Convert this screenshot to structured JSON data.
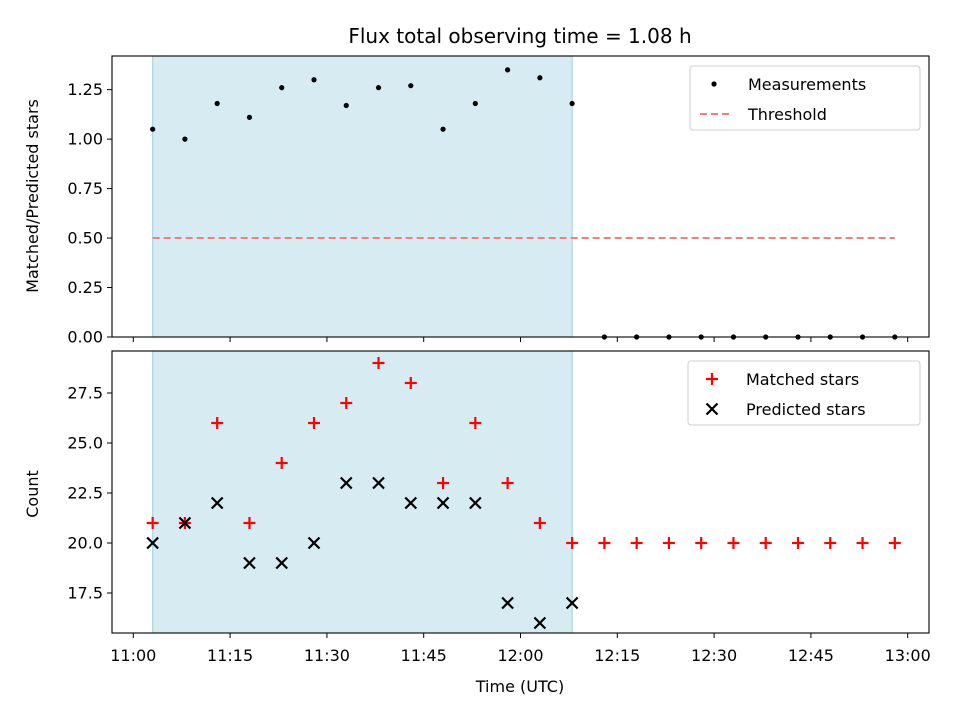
{
  "chart_data": [
    {
      "type": "scatter",
      "title": "Flux total observing time = 1.08 h",
      "xlabel": "",
      "ylabel": "Matched/Predicted stars",
      "ylim": [
        0,
        1.42
      ],
      "yticks": [
        "0.00",
        "0.25",
        "0.50",
        "0.75",
        "1.00",
        "1.25"
      ],
      "grid": false,
      "legend_position": "top-right",
      "shaded_x_range": [
        "11:03",
        "12:08"
      ],
      "series": [
        {
          "name": "Measurements",
          "marker": "dot",
          "color": "#000000",
          "x": [
            "11:03",
            "11:08",
            "11:13",
            "11:18",
            "11:23",
            "11:28",
            "11:33",
            "11:38",
            "11:43",
            "11:48",
            "11:53",
            "11:58",
            "12:03",
            "12:08",
            "12:13",
            "12:18",
            "12:23",
            "12:28",
            "12:33",
            "12:38",
            "12:43",
            "12:48",
            "12:53",
            "12:58"
          ],
          "values": [
            1.05,
            1.0,
            1.18,
            1.11,
            1.26,
            1.3,
            1.17,
            1.26,
            1.27,
            1.05,
            1.18,
            1.35,
            1.31,
            1.18,
            0,
            0,
            0,
            0,
            0,
            0,
            0,
            0,
            0,
            0
          ]
        },
        {
          "name": "Threshold",
          "marker": "dashed-line",
          "color": "#f08080",
          "x": [
            "11:03",
            "12:58"
          ],
          "values": [
            0.5,
            0.5
          ]
        }
      ]
    },
    {
      "type": "scatter",
      "title": "",
      "xlabel": "Time (UTC)",
      "ylabel": "Count",
      "ylim": [
        15.5,
        29.6
      ],
      "yticks": [
        "17.5",
        "20.0",
        "22.5",
        "25.0",
        "27.5"
      ],
      "xticks": [
        "11:00",
        "11:15",
        "11:30",
        "11:45",
        "12:00",
        "12:15",
        "12:30",
        "12:45",
        "13:00"
      ],
      "grid": false,
      "legend_position": "top-right",
      "shaded_x_range": [
        "11:03",
        "12:08"
      ],
      "series": [
        {
          "name": "Matched stars",
          "marker": "plus",
          "color": "#ff0000",
          "x": [
            "11:03",
            "11:08",
            "11:13",
            "11:18",
            "11:23",
            "11:28",
            "11:33",
            "11:38",
            "11:43",
            "11:48",
            "11:53",
            "11:58",
            "12:03",
            "12:08",
            "12:13",
            "12:18",
            "12:23",
            "12:28",
            "12:33",
            "12:38",
            "12:43",
            "12:48",
            "12:53",
            "12:58"
          ],
          "values": [
            21,
            21,
            26,
            21,
            24,
            26,
            27,
            29,
            28,
            23,
            26,
            23,
            21,
            20,
            20,
            20,
            20,
            20,
            20,
            20,
            20,
            20,
            20,
            20
          ]
        },
        {
          "name": "Predicted stars",
          "marker": "x",
          "color": "#000000",
          "x": [
            "11:03",
            "11:08",
            "11:13",
            "11:18",
            "11:23",
            "11:28",
            "11:33",
            "11:38",
            "11:43",
            "11:48",
            "11:53",
            "11:58",
            "12:03",
            "12:08"
          ],
          "values": [
            20,
            21,
            22,
            19,
            19,
            20,
            23,
            23,
            22,
            22,
            22,
            17,
            16,
            17
          ]
        }
      ]
    }
  ]
}
